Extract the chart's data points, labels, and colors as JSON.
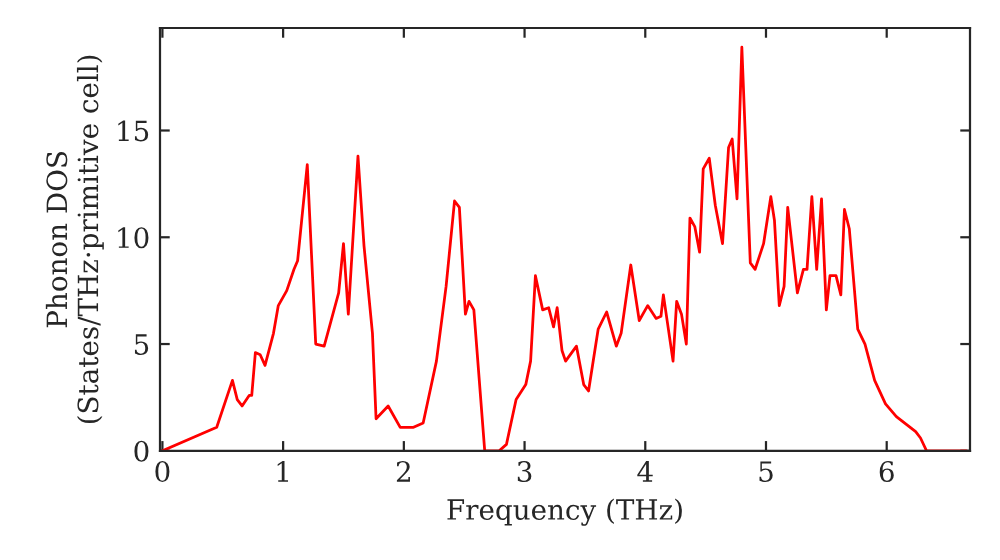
{
  "chart_data": {
    "type": "line",
    "xlabel": "Frequency (THz)",
    "ylabel": "Phonon DOS\n(States/THz·primitive cell)",
    "x": [
      0,
      0.45,
      0.58,
      0.62,
      0.66,
      0.72,
      0.74,
      0.77,
      0.81,
      0.85,
      0.92,
      0.96,
      1.03,
      1.09,
      1.12,
      1.2,
      1.27,
      1.34,
      1.46,
      1.5,
      1.54,
      1.62,
      1.67,
      1.74,
      1.77,
      1.87,
      1.97,
      2.08,
      2.16,
      2.27,
      2.35,
      2.42,
      2.46,
      2.51,
      2.54,
      2.58,
      2.67,
      2.79,
      2.85,
      2.93,
      3.01,
      3.05,
      3.09,
      3.15,
      3.2,
      3.24,
      3.27,
      3.31,
      3.34,
      3.43,
      3.49,
      3.53,
      3.61,
      3.68,
      3.76,
      3.8,
      3.88,
      3.95,
      4.02,
      4.09,
      4.13,
      4.15,
      4.23,
      4.26,
      4.3,
      4.34,
      4.37,
      4.41,
      4.45,
      4.48,
      4.53,
      4.58,
      4.64,
      4.69,
      4.72,
      4.76,
      4.8,
      4.87,
      4.91,
      4.98,
      5.04,
      5.07,
      5.11,
      5.15,
      5.18,
      5.26,
      5.31,
      5.34,
      5.38,
      5.42,
      5.46,
      5.5,
      5.53,
      5.58,
      5.62,
      5.65,
      5.69,
      5.76,
      5.82,
      5.9,
      5.99,
      6.08,
      6.24,
      6.28,
      6.33,
      6.66
    ],
    "series": [
      {
        "color": "#ff0000",
        "values": [
          0,
          1.1,
          3.3,
          2.4,
          2.1,
          2.6,
          2.6,
          4.6,
          4.5,
          4.0,
          5.5,
          6.8,
          7.5,
          8.5,
          8.9,
          13.4,
          5.0,
          4.9,
          7.4,
          9.7,
          6.4,
          13.8,
          9.6,
          5.5,
          1.5,
          2.1,
          1.1,
          1.1,
          1.3,
          4.2,
          7.7,
          11.7,
          11.4,
          6.4,
          7.0,
          6.6,
          0,
          0,
          0.3,
          2.4,
          3.1,
          4.2,
          8.2,
          6.6,
          6.7,
          5.8,
          6.7,
          4.7,
          4.2,
          4.9,
          3.1,
          2.8,
          5.7,
          6.5,
          4.9,
          5.5,
          8.7,
          6.1,
          6.8,
          6.2,
          6.3,
          7.3,
          4.2,
          7.0,
          6.4,
          5.0,
          10.9,
          10.5,
          9.3,
          13.2,
          13.7,
          11.5,
          9.7,
          14.2,
          14.6,
          11.8,
          18.9,
          8.8,
          8.5,
          9.7,
          11.9,
          10.8,
          6.8,
          7.7,
          11.4,
          7.4,
          8.5,
          8.5,
          11.9,
          8.5,
          11.8,
          6.6,
          8.2,
          8.2,
          7.3,
          11.3,
          10.4,
          5.7,
          5.0,
          3.3,
          2.2,
          1.6,
          0.9,
          0.6,
          0,
          0
        ]
      }
    ],
    "xlim": [
      -0.02,
      6.69
    ],
    "ylim": [
      0,
      19.8
    ],
    "xticks": [
      0,
      1,
      2,
      3,
      4,
      5,
      6
    ],
    "yticks": [
      0,
      5,
      10,
      15
    ],
    "grid": false,
    "legend": false,
    "line_style": "solid",
    "marker": "none"
  }
}
